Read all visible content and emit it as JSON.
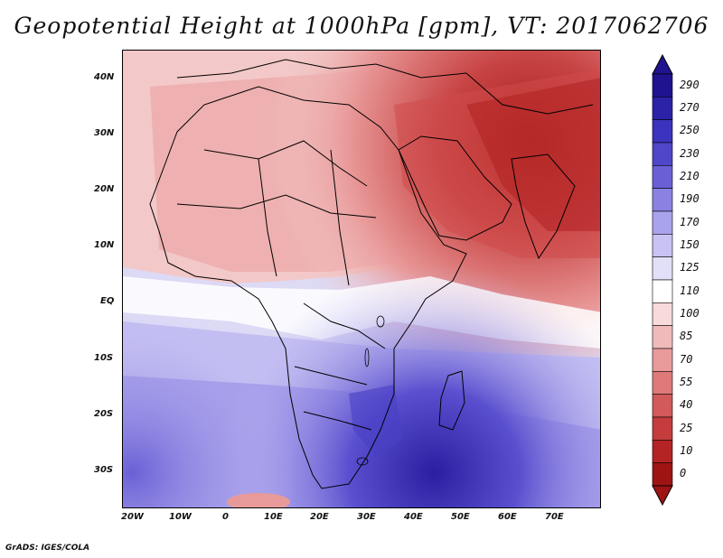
{
  "title": "Geopotential Height at 1000hPa [gpm], VT: 2017062706",
  "footer": "GrADS: IGES/COLA",
  "map": {
    "lat_labels": [
      "40N",
      "30N",
      "20N",
      "10N",
      "EQ",
      "10S",
      "20S",
      "30S"
    ],
    "lon_labels": [
      "20W",
      "10W",
      "0",
      "10E",
      "20E",
      "30E",
      "40E",
      "50E",
      "60E",
      "70E"
    ]
  },
  "colorbar": {
    "labels": [
      "290",
      "270",
      "250",
      "230",
      "210",
      "190",
      "170",
      "150",
      "125",
      "110",
      "100",
      "85",
      "70",
      "55",
      "40",
      "25",
      "10",
      "0"
    ],
    "colors": [
      "#1f138f",
      "#2c22a8",
      "#3b33bd",
      "#5046c9",
      "#6a60d6",
      "#8a82e2",
      "#a9a2ec",
      "#c8c3f3",
      "#e2e0f8",
      "#ffffff",
      "#f7dada",
      "#f1baba",
      "#e89a9a",
      "#de7a7a",
      "#d25a5a",
      "#c43c3c",
      "#b42424",
      "#9e1414"
    ]
  }
}
